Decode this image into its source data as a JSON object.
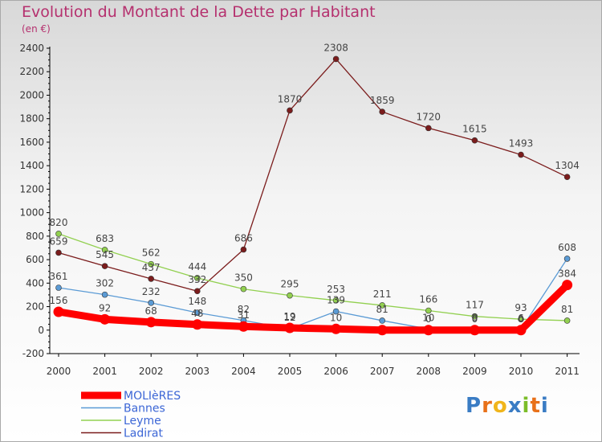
{
  "chart_data": {
    "type": "line",
    "title": "Evolution du Montant de la Dette par Habitant",
    "subtitle": "(en €)",
    "categories": [
      "2000",
      "2001",
      "2002",
      "2003",
      "2004",
      "2005",
      "2006",
      "2007",
      "2008",
      "2009",
      "2010",
      "2011"
    ],
    "ylim": [
      -200,
      2400
    ],
    "yticks": [
      -200,
      0,
      200,
      400,
      600,
      800,
      1000,
      1200,
      1400,
      1600,
      1800,
      2000,
      2200,
      2400
    ],
    "ytick_labels": [
      "-200",
      "0",
      "200",
      "400",
      "600",
      "800",
      "1000",
      "1200",
      "1400",
      "1600",
      "1800",
      "2000",
      "2200",
      "2400"
    ],
    "grid": false,
    "legend_position": "bottom-left",
    "series": [
      {
        "name": "MOLIèRES",
        "color": "#ff0000",
        "values": [
          156,
          92,
          68,
          48,
          31,
          19,
          10,
          0,
          0,
          0,
          0,
          384
        ],
        "labels": [
          "156",
          "92",
          "68",
          "48",
          "31",
          "19",
          "10",
          "",
          "0",
          "0",
          "0",
          "384"
        ]
      },
      {
        "name": "Bannes",
        "color": "#5b9bd5",
        "values": [
          361,
          302,
          232,
          148,
          82,
          12,
          159,
          81,
          10,
          8,
          6,
          608
        ],
        "labels": [
          "361",
          "302",
          "232",
          "148",
          "82",
          "12",
          "",
          "81",
          "10",
          "8",
          "6",
          "608"
        ]
      },
      {
        "name": "Leyme",
        "color": "#92d050",
        "values": [
          820,
          683,
          562,
          444,
          350,
          295,
          253,
          211,
          166,
          117,
          93,
          81
        ],
        "labels": [
          "820",
          "683",
          "562",
          "444",
          "350",
          "295",
          "253",
          "211",
          "166",
          "117",
          "93",
          "81"
        ]
      },
      {
        "name": "Ladirat",
        "color": "#7b1c1c",
        "values": [
          659,
          545,
          437,
          332,
          686,
          1870,
          2308,
          1859,
          1720,
          1615,
          1493,
          1304
        ],
        "labels": [
          "659",
          "545",
          "437",
          "332",
          "686",
          "1870",
          "2308",
          "1859",
          "1720",
          "1615",
          "1493",
          "1304"
        ]
      }
    ],
    "extra_labels": [
      "139"
    ]
  },
  "logo": {
    "letters": [
      "P",
      "r",
      "o",
      "x",
      "i",
      "t",
      "i"
    ],
    "colors": [
      "#3a7cc4",
      "#e8711a",
      "#f0b51b",
      "#3a7cc4",
      "#7cbd2a",
      "#e8711a",
      "#3a7cc4"
    ]
  }
}
